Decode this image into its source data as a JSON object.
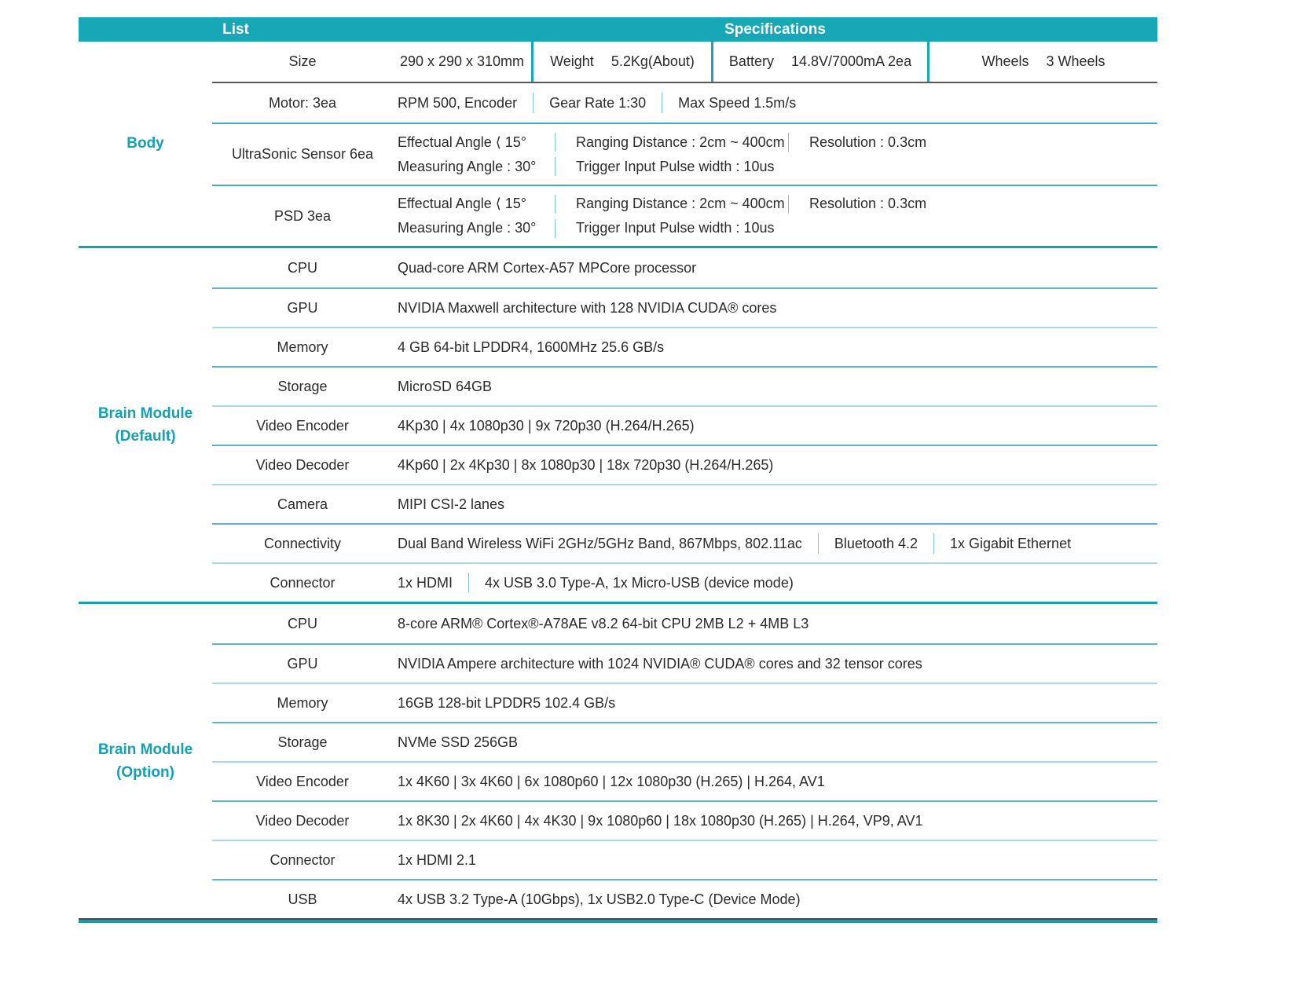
{
  "header": {
    "list": "List",
    "specifications": "Specifications"
  },
  "colors": {
    "accent_teal": "#17a7b6",
    "category_text": "#14a1b4",
    "section_line": "#1a9fae",
    "row_line_light": "#aad9e6",
    "row_line_medium": "#5fb5ca",
    "dark_line": "#54595d"
  },
  "body_section": {
    "category": "Body",
    "size_row": {
      "cells": [
        {
          "label": "Size",
          "value": "290 x 290 x 310mm"
        },
        {
          "label": "Weight",
          "value": "5.2Kg(About)"
        },
        {
          "label": "Battery",
          "value": "14.8V/7000mA 2ea"
        },
        {
          "label": "Wheels",
          "value": "3 Wheels"
        }
      ]
    },
    "motor_row": {
      "label": "Motor: 3ea",
      "parts": [
        "RPM 500, Encoder",
        "Gear Rate 1:30",
        "Max Speed 1.5m/s"
      ]
    },
    "ultrasonic_row": {
      "label": "UltraSonic Sensor 6ea",
      "line1": [
        "Effectual Angle ⟨ 15°",
        "Ranging Distance : 2cm ~ 400cm",
        "Resolution : 0.3cm"
      ],
      "line2": [
        "Measuring Angle : 30°",
        "Trigger Input Pulse width : 10us"
      ]
    },
    "psd_row": {
      "label": "PSD 3ea",
      "line1": [
        "Effectual Angle ⟨ 15°",
        "Ranging Distance : 2cm ~ 400cm",
        "Resolution : 0.3cm"
      ],
      "line2": [
        "Measuring Angle : 30°",
        "Trigger Input Pulse width : 10us"
      ]
    }
  },
  "brain_default_section": {
    "category_line1": "Brain Module",
    "category_line2": "(Default)",
    "rows": [
      {
        "label": "CPU",
        "value": "Quad-core ARM Cortex-A57 MPCore processor"
      },
      {
        "label": "GPU",
        "value": "NVIDIA Maxwell architecture with 128 NVIDIA CUDA® cores"
      },
      {
        "label": "Memory",
        "value": "4 GB 64-bit LPDDR4, 1600MHz 25.6 GB/s"
      },
      {
        "label": "Storage",
        "value": "MicroSD 64GB"
      },
      {
        "label": "Video Encoder",
        "value": "4Kp30 | 4x 1080p30 | 9x 720p30 (H.264/H.265)"
      },
      {
        "label": "Video Decoder",
        "value": "4Kp60 | 2x 4Kp30 | 8x 1080p30 | 18x 720p30 (H.264/H.265)"
      },
      {
        "label": "Camera",
        "value": "MIPI CSI-2 lanes"
      },
      {
        "label": "Connectivity",
        "parts": [
          "Dual Band Wireless WiFi 2GHz/5GHz Band, 867Mbps, 802.11ac",
          "Bluetooth 4.2",
          "1x Gigabit Ethernet"
        ]
      },
      {
        "label": "Connector",
        "parts": [
          "1x HDMI",
          "4x USB 3.0 Type-A,  1x Micro-USB (device mode)"
        ]
      }
    ]
  },
  "brain_option_section": {
    "category_line1": "Brain Module",
    "category_line2": "(Option)",
    "rows": [
      {
        "label": "CPU",
        "value": "8-core ARM® Cortex®-A78AE v8.2 64-bit CPU 2MB L2 + 4MB L3"
      },
      {
        "label": "GPU",
        "value": "NVIDIA Ampere architecture with 1024 NVIDIA® CUDA® cores and 32 tensor cores"
      },
      {
        "label": "Memory",
        "value": "16GB 128-bit LPDDR5 102.4 GB/s"
      },
      {
        "label": "Storage",
        "value": "NVMe SSD 256GB"
      },
      {
        "label": "Video Encoder",
        "value": "1x 4K60 | 3x 4K60 | 6x 1080p60 | 12x 1080p30 (H.265) | H.264, AV1"
      },
      {
        "label": "Video Decoder",
        "value": "1x 8K30 | 2x 4K60 | 4x 4K30 | 9x 1080p60 | 18x 1080p30 (H.265) | H.264, VP9, AV1"
      },
      {
        "label": "Connector",
        "value": "1x HDMI 2.1"
      },
      {
        "label": "USB",
        "value": "4x USB 3.2 Type-A (10Gbps),  1x USB2.0 Type-C (Device Mode)"
      }
    ]
  }
}
